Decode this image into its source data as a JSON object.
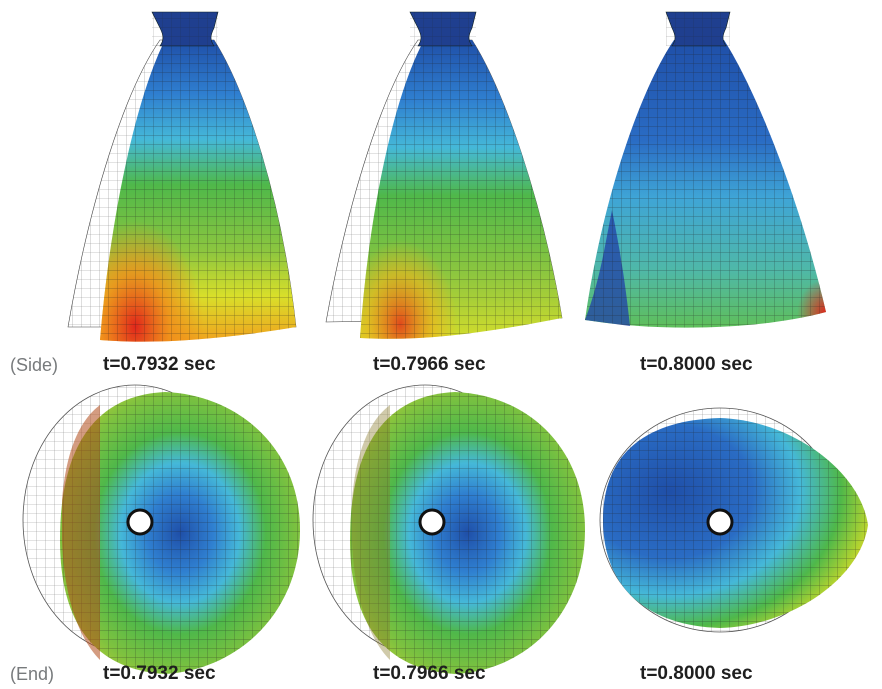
{
  "rows": [
    {
      "label": "(Side)",
      "times": [
        "t=0.7932 sec",
        "t=0.7966 sec",
        "t=0.8000 sec"
      ]
    },
    {
      "label": "(End)",
      "times": [
        "t=0.7932 sec",
        "t=0.7966 sec",
        "t=0.8000 sec"
      ]
    }
  ],
  "colors": {
    "deep_blue": "#1f4fa8",
    "blue": "#2f7fd0",
    "cyan": "#45b8d8",
    "green": "#4fb84a",
    "light_green": "#8cc63f",
    "yellow": "#e7e21f",
    "orange": "#f08a1a",
    "red": "#e0261b",
    "mesh": "#222222"
  }
}
